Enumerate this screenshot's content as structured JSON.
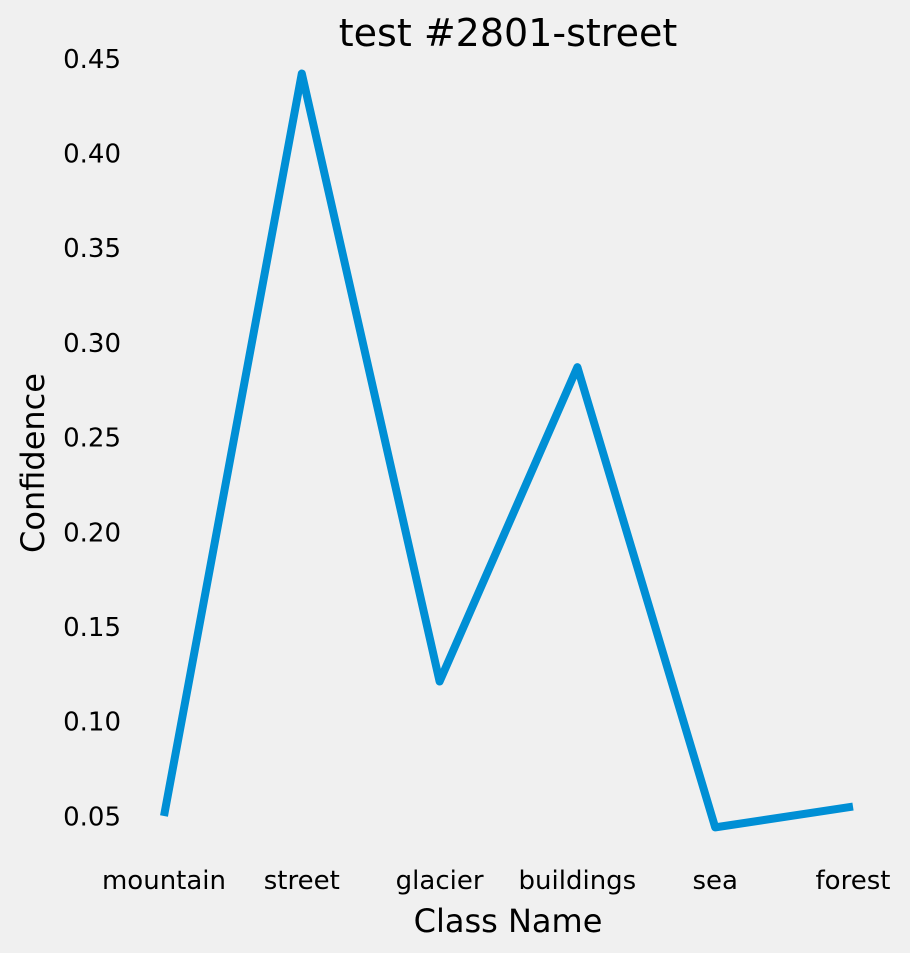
{
  "chart_data": {
    "type": "line",
    "title": "test #2801-street",
    "xlabel": "Class Name",
    "ylabel": "Confidence",
    "categories": [
      "mountain",
      "street",
      "glacier",
      "buildings",
      "sea",
      "forest"
    ],
    "series": [
      {
        "values": [
          0.051,
          0.443,
          0.122,
          0.288,
          0.045,
          0.056
        ]
      }
    ],
    "yticks": [
      "0.05",
      "0.10",
      "0.15",
      "0.20",
      "0.25",
      "0.30",
      "0.35",
      "0.40",
      "0.45"
    ],
    "ylim": [
      0.032,
      0.457
    ],
    "grid": false,
    "colors": {
      "background": "#f0f0f0",
      "line": "#008fd5"
    }
  }
}
